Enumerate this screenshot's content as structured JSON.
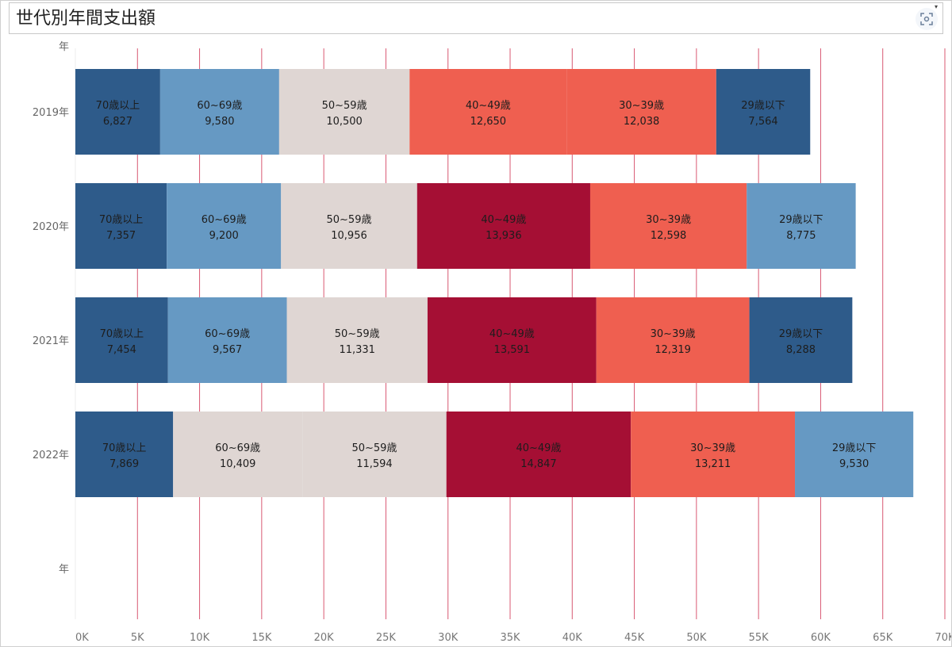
{
  "title": "世代別年間支出額",
  "icons": {
    "focus": "focus-frame-icon",
    "menu": "caret-down-icon"
  },
  "colors": {
    "dark_blue": "#2e5b8a",
    "light_blue": "#6699c3",
    "beige": "#dfd6d3",
    "dark_red": "#a50f34",
    "salmon": "#ef5f50",
    "gridline": "#d23c5a"
  },
  "chart_data": {
    "type": "bar",
    "orientation": "horizontal",
    "stacked": true,
    "row_header_label": "年",
    "categories": [
      "2019年",
      "2020年",
      "2021年",
      "2022年",
      "年"
    ],
    "xlim": [
      0,
      70000
    ],
    "x_ticks": [
      0,
      5000,
      10000,
      15000,
      20000,
      25000,
      30000,
      35000,
      40000,
      45000,
      50000,
      55000,
      60000,
      65000,
      70000
    ],
    "x_tick_labels": [
      "0K",
      "5K",
      "10K",
      "15K",
      "20K",
      "25K",
      "30K",
      "35K",
      "40K",
      "45K",
      "50K",
      "55K",
      "60K",
      "65K",
      "70K"
    ],
    "grid": "vertical",
    "rows": [
      {
        "label": "2019年",
        "segments": [
          {
            "group": "70歳以上",
            "value": 6827,
            "value_label": "6,827",
            "color": "#2e5b8a"
          },
          {
            "group": "60~69歳",
            "value": 9580,
            "value_label": "9,580",
            "color": "#6699c3"
          },
          {
            "group": "50~59歳",
            "value": 10500,
            "value_label": "10,500",
            "color": "#dfd6d3"
          },
          {
            "group": "40~49歳",
            "value": 12650,
            "value_label": "12,650",
            "color": "#ef5f50"
          },
          {
            "group": "30~39歳",
            "value": 12038,
            "value_label": "12,038",
            "color": "#ef5f50"
          },
          {
            "group": "29歳以下",
            "value": 7564,
            "value_label": "7,564",
            "color": "#2e5b8a"
          }
        ]
      },
      {
        "label": "2020年",
        "segments": [
          {
            "group": "70歳以上",
            "value": 7357,
            "value_label": "7,357",
            "color": "#2e5b8a"
          },
          {
            "group": "60~69歳",
            "value": 9200,
            "value_label": "9,200",
            "color": "#6699c3"
          },
          {
            "group": "50~59歳",
            "value": 10956,
            "value_label": "10,956",
            "color": "#dfd6d3"
          },
          {
            "group": "40~49歳",
            "value": 13936,
            "value_label": "13,936",
            "color": "#a50f34"
          },
          {
            "group": "30~39歳",
            "value": 12598,
            "value_label": "12,598",
            "color": "#ef5f50"
          },
          {
            "group": "29歳以下",
            "value": 8775,
            "value_label": "8,775",
            "color": "#6699c3"
          }
        ]
      },
      {
        "label": "2021年",
        "segments": [
          {
            "group": "70歳以上",
            "value": 7454,
            "value_label": "7,454",
            "color": "#2e5b8a"
          },
          {
            "group": "60~69歳",
            "value": 9567,
            "value_label": "9,567",
            "color": "#6699c3"
          },
          {
            "group": "50~59歳",
            "value": 11331,
            "value_label": "11,331",
            "color": "#dfd6d3"
          },
          {
            "group": "40~49歳",
            "value": 13591,
            "value_label": "13,591",
            "color": "#a50f34"
          },
          {
            "group": "30~39歳",
            "value": 12319,
            "value_label": "12,319",
            "color": "#ef5f50"
          },
          {
            "group": "29歳以下",
            "value": 8288,
            "value_label": "8,288",
            "color": "#2e5b8a"
          }
        ]
      },
      {
        "label": "2022年",
        "segments": [
          {
            "group": "70歳以上",
            "value": 7869,
            "value_label": "7,869",
            "color": "#2e5b8a"
          },
          {
            "group": "60~69歳",
            "value": 10409,
            "value_label": "10,409",
            "color": "#dfd6d3"
          },
          {
            "group": "50~59歳",
            "value": 11594,
            "value_label": "11,594",
            "color": "#dfd6d3"
          },
          {
            "group": "40~49歳",
            "value": 14847,
            "value_label": "14,847",
            "color": "#a50f34"
          },
          {
            "group": "30~39歳",
            "value": 13211,
            "value_label": "13,211",
            "color": "#ef5f50"
          },
          {
            "group": "29歳以下",
            "value": 9530,
            "value_label": "9,530",
            "color": "#6699c3"
          }
        ]
      },
      {
        "label": "年",
        "segments": []
      }
    ]
  }
}
